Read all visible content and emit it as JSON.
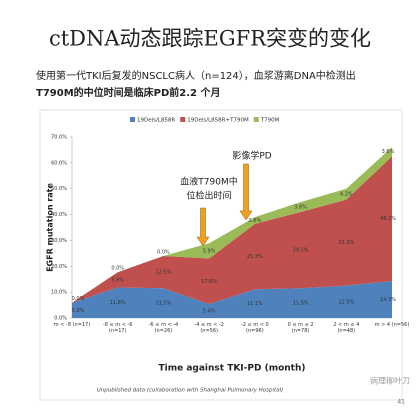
{
  "title": "ctDNA动态跟踪EGFR突变的变化",
  "subtitle": [
    "使用第一代TKI后复发的NSCLC病人（n=124），血浆游离DNA中检测出",
    "T790M的中位时间是临床PD前2.2 个月"
  ],
  "chart_data": {
    "type": "stacked-area",
    "y_label": "EGFR mutation rate",
    "x_label": "Time against TKI-PD (month)",
    "categories": [
      "m < -8 (n=17)",
      "-8 ≤ m < -6 (n=17)",
      "-6 ≤ m < -4 (n=26)",
      "-4 ≤ m < -2 (n=56)",
      "-2 ≤ m < 0 (n=96)",
      "0 ≤ m ≤ 2 (n=78)",
      "2 < m ≤ 4 (n=48)",
      "m > 4 (n=56)"
    ],
    "series": [
      {
        "name": "19Dels/L858R",
        "color": "#4f81bd",
        "values": [
          5.9,
          11.8,
          11.5,
          5.4,
          11.1,
          11.5,
          12.5,
          14.3
        ],
        "value_labels": [
          "5.9%",
          "11.8%",
          "11.5%",
          "5.4%",
          "11.1%",
          "11.5%",
          "12.5%",
          "14.3%"
        ]
      },
      {
        "name": "19Dels/L858R+T790M",
        "color": "#c0504d",
        "values": [
          0.0,
          5.9,
          12.5,
          17.6,
          25.3,
          29.5,
          33.3,
          48.2
        ],
        "value_labels": [
          "0.0%",
          "5.9%",
          "12.5%",
          "17.6%",
          "25.3%",
          "29.5%",
          "33.3%",
          "48.2%"
        ]
      },
      {
        "name": "T790M",
        "color": "#9bbb59",
        "values": [
          0.0,
          0.0,
          0.0,
          5.9,
          2.6,
          3.8,
          4.2,
          3.6
        ],
        "value_labels": [
          null,
          "0.0%",
          "0.0%",
          "5.9%",
          "2.6%",
          "3.8%",
          "4.2%",
          "3.6%"
        ]
      }
    ],
    "ylim": [
      0,
      70
    ],
    "yticks": [
      {
        "value": 0,
        "label": "0.0%"
      },
      {
        "value": 10,
        "label": "10.0%"
      },
      {
        "value": 20,
        "label": "20.0%"
      },
      {
        "value": 30,
        "label": "30.0%"
      },
      {
        "value": 40,
        "label": "40.0%"
      },
      {
        "value": 50,
        "label": "50.0%"
      },
      {
        "value": 60,
        "label": "60.0%"
      },
      {
        "value": 70,
        "label": "70.0%"
      }
    ],
    "annotations": [
      {
        "lines": [
          "血液T790M中",
          "位检出时间"
        ],
        "color": "#f0a020"
      },
      {
        "lines": [
          "影像学PD"
        ],
        "color": "#f0a020"
      }
    ]
  },
  "footnote": "Unpublished data (collaboration with Shanghai Pulmonary Hospital)",
  "page_number": "41",
  "watermark": "病理柳叶刀"
}
